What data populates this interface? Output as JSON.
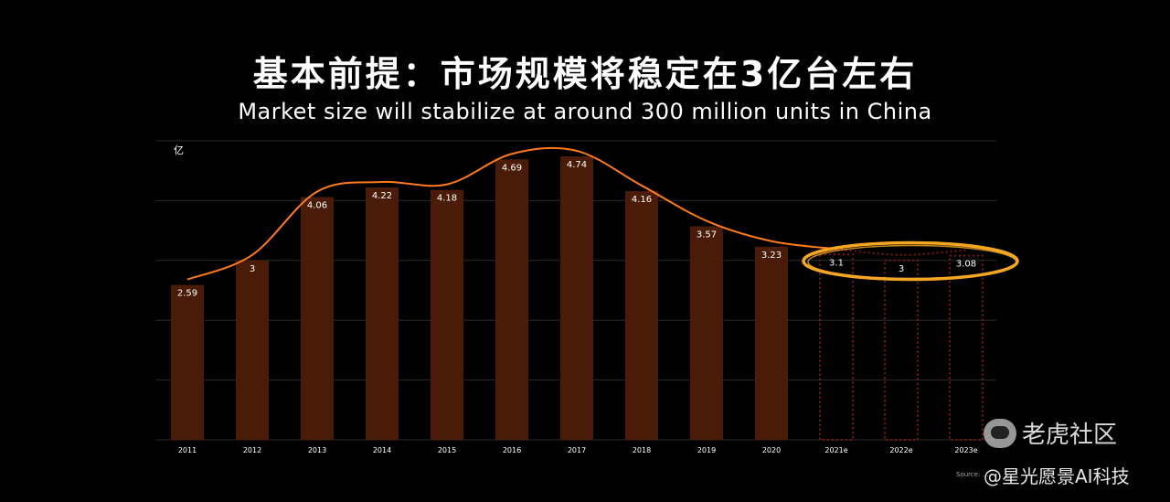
{
  "title": "基本前提：市场规模将稳定在3亿台左右",
  "subtitle": "Market size will stabilize at around 300 million units in China",
  "unit_label": "亿",
  "source": "Source: ...",
  "watermark": {
    "primary": "老虎社区",
    "secondary": "@星光愿景AI科技"
  },
  "colors": {
    "bar": "#4a1c08",
    "line": "#ff7a1a",
    "forecast_outline": "#7a1a10",
    "highlight_ellipse": "#f5a623"
  },
  "chart_data": {
    "type": "bar",
    "categories": [
      "2011",
      "2012",
      "2013",
      "2014",
      "2015",
      "2016",
      "2017",
      "2018",
      "2019",
      "2020",
      "2021e",
      "2022e",
      "2023e"
    ],
    "values": [
      2.59,
      3,
      4.06,
      4.22,
      4.18,
      4.69,
      4.74,
      4.16,
      3.57,
      3.23,
      3.1,
      3,
      3.08
    ],
    "value_labels": [
      "2.59",
      "3",
      "4.06",
      "4.22",
      "4.18",
      "4.69",
      "4.74",
      "4.16",
      "3.57",
      "3.23",
      "3.1",
      "3",
      "3.08"
    ],
    "forecast": [
      false,
      false,
      false,
      false,
      false,
      false,
      false,
      false,
      false,
      false,
      true,
      true,
      true
    ],
    "overlay": "line",
    "ylim": [
      0,
      5
    ],
    "grid": true,
    "ylabel": "亿",
    "highlight": "2021e–2023e"
  }
}
